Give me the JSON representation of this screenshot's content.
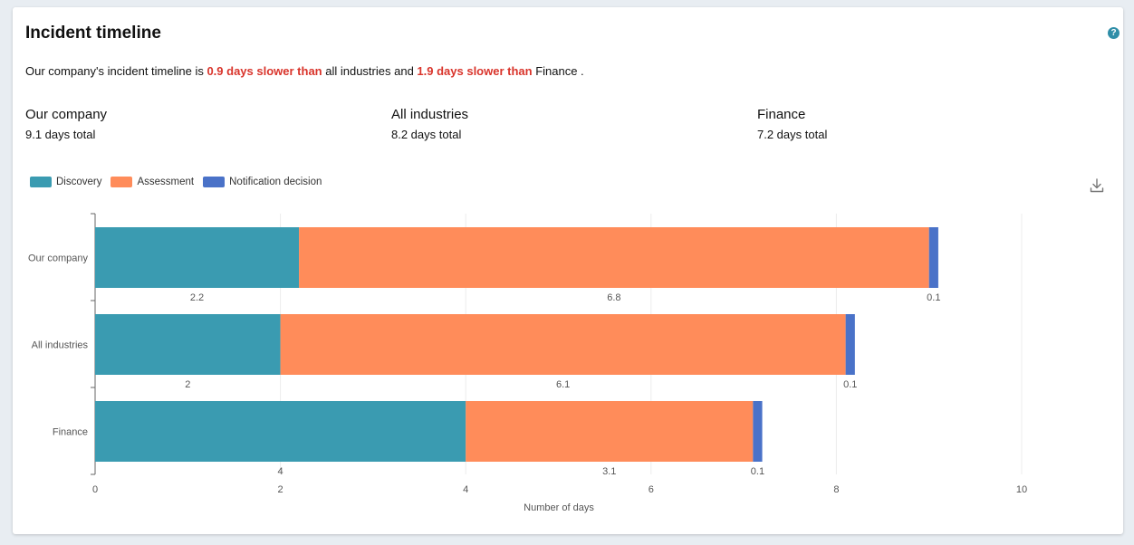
{
  "card": {
    "title": "Incident timeline",
    "help_icon": "help-icon",
    "download_icon": "download-icon"
  },
  "summary": {
    "prefix": "Our company's incident timeline is ",
    "diff_all": "0.9 days slower than",
    "middle": " all industries and ",
    "diff_finance": "1.9 days slower than",
    "suffix": " Finance ."
  },
  "stats": [
    {
      "name": "Our company",
      "total": "9.1 days total"
    },
    {
      "name": "All industries",
      "total": "8.2 days total"
    },
    {
      "name": "Finance",
      "total": "7.2 days total"
    }
  ],
  "colors": {
    "discovery": "#3a9bb1",
    "assessment": "#ff8c5a",
    "notification": "#4a72c8",
    "highlight": "#d9342b"
  },
  "chart_data": {
    "type": "bar",
    "orientation": "horizontal",
    "stacked": true,
    "categories": [
      "Our company",
      "All industries",
      "Finance"
    ],
    "series": [
      {
        "name": "Discovery",
        "values": [
          2.2,
          2,
          4
        ]
      },
      {
        "name": "Assessment",
        "values": [
          6.8,
          6.1,
          3.1
        ]
      },
      {
        "name": "Notification decision",
        "values": [
          0.1,
          0.1,
          0.1
        ]
      }
    ],
    "value_labels": [
      [
        "2.2",
        "6.8",
        "0.1"
      ],
      [
        "2",
        "6.1",
        "0.1"
      ],
      [
        "4",
        "3.1",
        "0.1"
      ]
    ],
    "xlabel": "Number of days",
    "xlim": [
      0,
      10
    ],
    "xticks": [
      "0",
      "2",
      "4",
      "6",
      "8",
      "10"
    ],
    "grid": true,
    "legend_position": "top-left"
  }
}
